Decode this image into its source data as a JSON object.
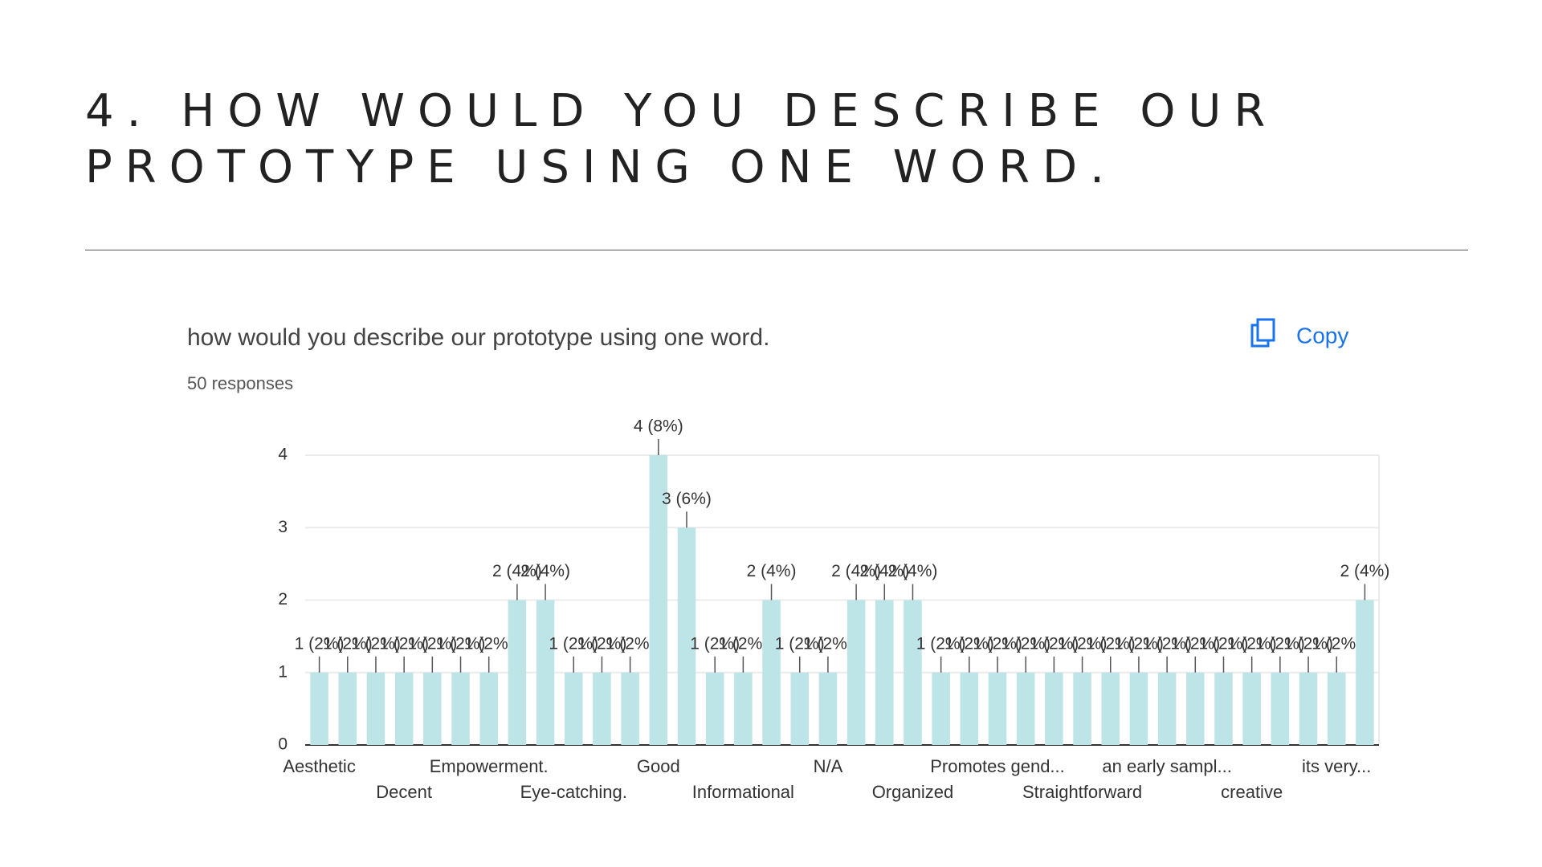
{
  "header": {
    "title": "4. HOW WOULD YOU DESCRIBE OUR PROTOTYPE USING ONE WORD."
  },
  "card": {
    "question": "how would you describe our prototype using one word.",
    "responses": "50 responses",
    "copy": "Copy"
  },
  "chart_data": {
    "type": "bar",
    "categories": [
      "Aesthetic",
      null,
      null,
      "Decent",
      null,
      null,
      "Empowerment.",
      null,
      null,
      "Eye-catching.",
      null,
      null,
      "Good",
      null,
      null,
      "Informational",
      null,
      null,
      "N/A",
      null,
      null,
      "Organized",
      null,
      null,
      "Promotes gend...",
      null,
      null,
      "Straightforward",
      null,
      null,
      "an early sampl...",
      null,
      null,
      "creative",
      null,
      null,
      "its very...",
      null
    ],
    "values": [
      1,
      1,
      1,
      1,
      1,
      1,
      1,
      2,
      2,
      1,
      1,
      1,
      4,
      3,
      1,
      1,
      2,
      1,
      1,
      2,
      2,
      2,
      1,
      1,
      1,
      1,
      1,
      1,
      1,
      1,
      1,
      1,
      1,
      1,
      1,
      1,
      1,
      2
    ],
    "value_labels": [
      "1 (2%)",
      "1 (2%)",
      "1 (2%)",
      "1 (2%)",
      "1 (2%)",
      "1 (2%)",
      "1 (2%)",
      "2 (4%)",
      "2 (4%)",
      "1 (2%)",
      "1 (2%)",
      "1 (2%)",
      "4 (8%)",
      "3 (6%)",
      "1 (2%)",
      "1 (2%)",
      "2 (4%)",
      "1 (2%)",
      "1 (2%)",
      "2 (4%)",
      "2 (4%)",
      "2 (4%)",
      "1 (2%)",
      "1 (2%)",
      "1 (2%)",
      "1 (2%)",
      "1 (2%)",
      "1 (2%)",
      "1 (2%)",
      "1 (2%)",
      "1 (2%)",
      "1 (2%)",
      "1 (2%)",
      "1 (2%)",
      "1 (2%)",
      "1 (2%)",
      "1 (2%)",
      "2 (4%)"
    ],
    "color": "#bde4e7",
    "ylim": [
      0,
      4
    ],
    "yticks": [
      0,
      1,
      2,
      3,
      4
    ],
    "grid": true
  }
}
